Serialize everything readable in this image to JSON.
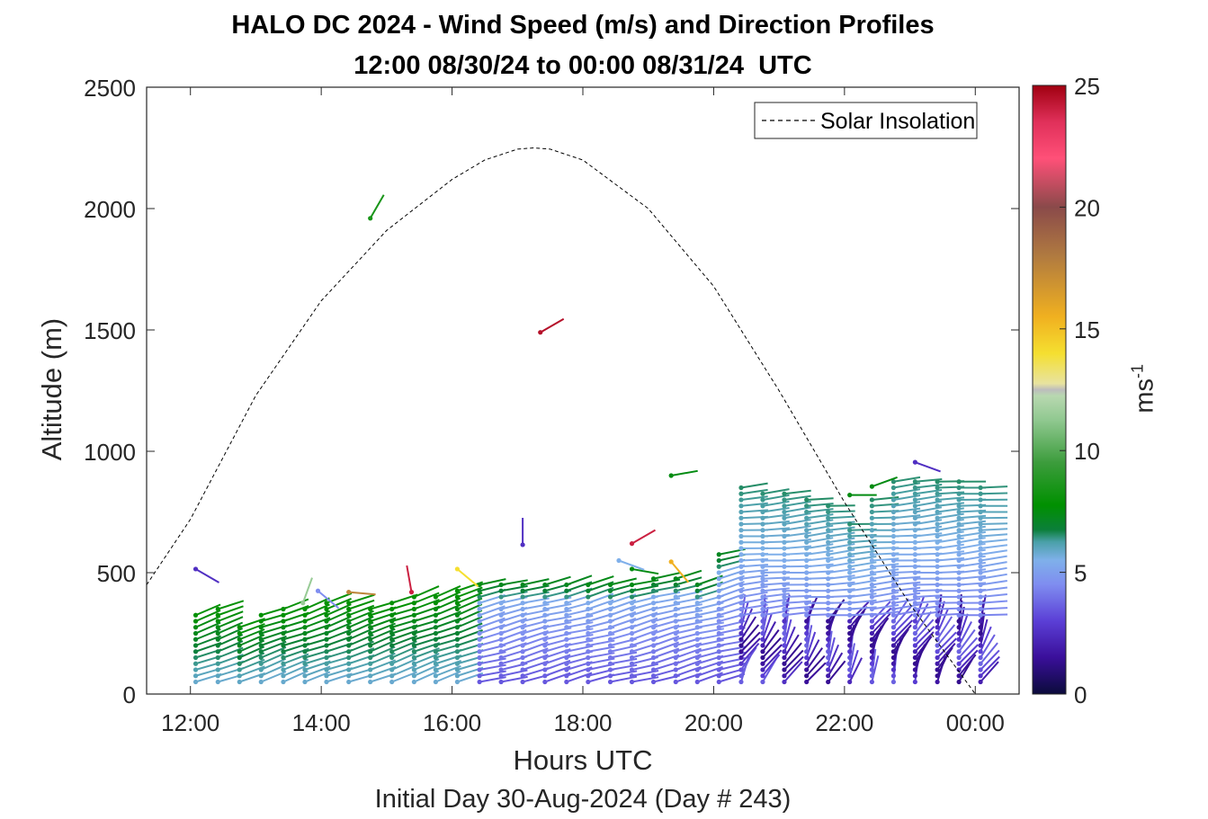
{
  "chart_data": {
    "type": "scatter",
    "title": "HALO DC 2024 - Wind Speed (m/s) and Direction Profiles",
    "subtitle": "12:00 08/30/24 to 00:00 08/31/24  UTC",
    "xlabel": "Hours UTC",
    "ylabel": "Altitude (m)",
    "footnote": "Initial Day 30-Aug-2024 (Day # 243)",
    "xlim": [
      11.33,
      24.67
    ],
    "ylim": [
      0,
      2500
    ],
    "x_ticks": [
      "12:00",
      "14:00",
      "16:00",
      "18:00",
      "20:00",
      "22:00",
      "00:00"
    ],
    "x_tick_values": [
      12,
      14,
      16,
      18,
      20,
      22,
      24
    ],
    "y_ticks": [
      "0",
      "500",
      "1000",
      "1500",
      "2000",
      "2500"
    ],
    "y_tick_values": [
      0,
      500,
      1000,
      1500,
      2000,
      2500
    ],
    "legend": {
      "entries": [
        "Solar Insolation"
      ],
      "location": "top-right"
    },
    "colorbar": {
      "label_base": "ms",
      "label_exp": "-1",
      "range": [
        0,
        25
      ],
      "ticks": [
        "0",
        "5",
        "10",
        "15",
        "20",
        "25"
      ],
      "tick_values": [
        0,
        5,
        10,
        15,
        20,
        25
      ]
    },
    "solar_insolation": {
      "x": [
        11.33,
        12.0,
        13.0,
        14.0,
        15.0,
        16.0,
        16.5,
        17.0,
        17.25,
        17.5,
        18.0,
        19.0,
        20.0,
        21.0,
        22.0,
        23.0,
        24.0,
        24.67
      ],
      "y": [
        450,
        720,
        1230,
        1620,
        1910,
        2120,
        2200,
        2245,
        2250,
        2245,
        2200,
        2000,
        1680,
        1250,
        790,
        370,
        0,
        0
      ]
    },
    "profile_times": [
      12.08,
      12.42,
      12.75,
      13.08,
      13.42,
      13.75,
      14.08,
      14.42,
      14.75,
      15.08,
      15.42,
      15.75,
      16.08,
      16.42,
      16.75,
      17.08,
      17.42,
      17.75,
      18.08,
      18.42,
      18.75,
      19.08,
      19.42,
      19.75,
      20.08,
      20.42,
      20.75,
      21.08,
      21.42,
      21.75,
      22.08,
      22.42,
      22.75,
      23.08,
      23.42,
      23.75,
      24.08
    ],
    "profile_tops": [
      340,
      350,
      280,
      345,
      350,
      350,
      375,
      375,
      360,
      380,
      400,
      420,
      430,
      450,
      460,
      460,
      460,
      460,
      450,
      450,
      450,
      480,
      480,
      460,
      590,
      850,
      840,
      830,
      800,
      780,
      710,
      800,
      890,
      890,
      880,
      880,
      870
    ],
    "profile_dz": 25,
    "outlier_vectors": [
      {
        "x": 12.08,
        "y": 515,
        "speed": 2.5,
        "dir_deg": 300
      },
      {
        "x": 14.75,
        "y": 1960,
        "speed": 8.5,
        "dir_deg": 210
      },
      {
        "x": 13.95,
        "y": 425,
        "speed": 4.5,
        "dir_deg": 310
      },
      {
        "x": 14.42,
        "y": 420,
        "speed": 17.5,
        "dir_deg": 275
      },
      {
        "x": 13.72,
        "y": 375,
        "speed": 11.5,
        "dir_deg": 200
      },
      {
        "x": 15.38,
        "y": 420,
        "speed": 24,
        "dir_deg": 170
      },
      {
        "x": 16.08,
        "y": 515,
        "speed": 14,
        "dir_deg": 310
      },
      {
        "x": 17.35,
        "y": 1490,
        "speed": 24.5,
        "dir_deg": 240
      },
      {
        "x": 17.08,
        "y": 615,
        "speed": 2.5,
        "dir_deg": 180
      },
      {
        "x": 18.75,
        "y": 620,
        "speed": 24,
        "dir_deg": 240
      },
      {
        "x": 19.35,
        "y": 545,
        "speed": 15.5,
        "dir_deg": 320
      },
      {
        "x": 19.35,
        "y": 900,
        "speed": 7.5,
        "dir_deg": 260
      },
      {
        "x": 18.75,
        "y": 515,
        "speed": 7.5,
        "dir_deg": 280
      },
      {
        "x": 18.55,
        "y": 550,
        "speed": 5.5,
        "dir_deg": 290
      },
      {
        "x": 22.08,
        "y": 820,
        "speed": 7.5,
        "dir_deg": 270
      },
      {
        "x": 22.42,
        "y": 855,
        "speed": 7.5,
        "dir_deg": 250
      },
      {
        "x": 23.08,
        "y": 955,
        "speed": 2.5,
        "dir_deg": 290
      }
    ]
  }
}
